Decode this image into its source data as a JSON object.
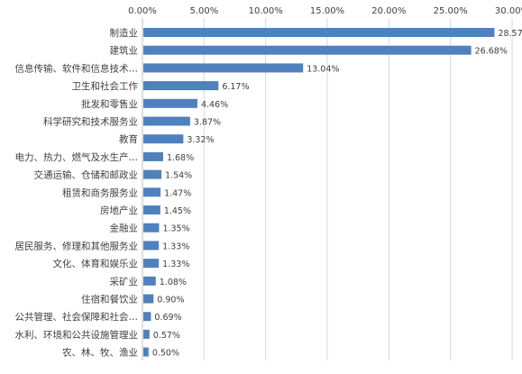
{
  "chart_data": {
    "type": "bar",
    "orientation": "horizontal",
    "axis_position": "top",
    "xlim": [
      0,
      30
    ],
    "x_ticks": [
      "0.00%",
      "5.00%",
      "10.00%",
      "15.00%",
      "20.00%",
      "25.00%",
      "30.00%"
    ],
    "grid": true,
    "legend": "none",
    "bar_color": "#4f81bd",
    "grid_color": "#d9d9d9",
    "categories": [
      "制造业",
      "建筑业",
      "信息传输、软件和信息技术…",
      "卫生和社会工作",
      "批发和零售业",
      "科学研究和技术服务业",
      "教育",
      "电力、热力、燃气及水生产…",
      "交通运输、仓储和邮政业",
      "租赁和商务服务业",
      "房地产业",
      "金融业",
      "居民服务、修理和其他服务业",
      "文化、体育和娱乐业",
      "采矿业",
      "住宿和餐饮业",
      "公共管理、社会保障和社会…",
      "水利、环境和公共设施管理业",
      "农、林、牧、渔业"
    ],
    "values": [
      28.57,
      26.68,
      13.04,
      6.17,
      4.46,
      3.87,
      3.32,
      1.68,
      1.54,
      1.47,
      1.45,
      1.35,
      1.33,
      1.33,
      1.08,
      0.9,
      0.69,
      0.57,
      0.5
    ],
    "data_labels": [
      "28.57%",
      "26.68%",
      "13.04%",
      "6.17%",
      "4.46%",
      "3.87%",
      "3.32%",
      "1.68%",
      "1.54%",
      "1.47%",
      "1.45%",
      "1.35%",
      "1.33%",
      "1.33%",
      "1.08%",
      "0.90%",
      "0.69%",
      "0.57%",
      "0.50%"
    ]
  }
}
